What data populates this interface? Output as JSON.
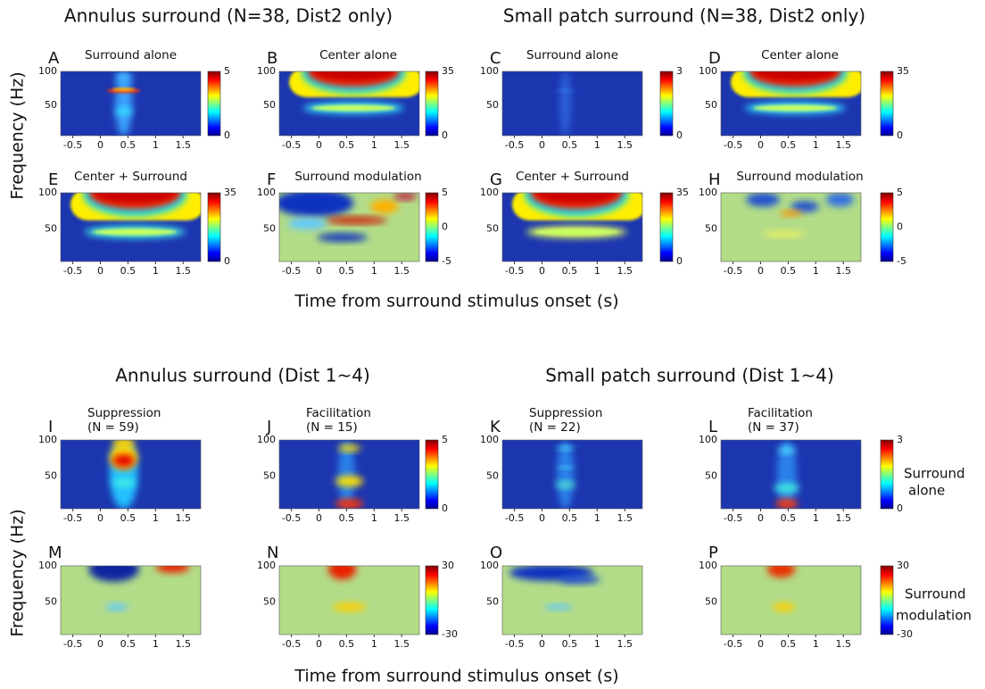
{
  "sections": [
    {
      "title": "Annulus surround (N=38, Dist2 only)"
    },
    {
      "title": "Small patch surround (N=38, Dist2 only)"
    },
    {
      "title": "Annulus surround (Dist 1~4)"
    },
    {
      "title": "Small patch surround (Dist 1~4)"
    }
  ],
  "y_axis_label": "Frequency (Hz)",
  "x_axis_label": "Time from surround stimulus onset (s)",
  "xticks": [
    "-0.5",
    "0",
    "0.5",
    "1",
    "1.5"
  ],
  "yticks": [
    "100",
    "50"
  ],
  "colorbar_labels": [
    [
      "Surround",
      "alone"
    ],
    [
      "Surround",
      "modulation"
    ]
  ],
  "panels": [
    {
      "letter": "A",
      "title": [
        "Surround alone"
      ],
      "colorbar": [
        "5",
        "0"
      ]
    },
    {
      "letter": "B",
      "title": [
        "Center alone"
      ],
      "colorbar": [
        "35",
        "0"
      ]
    },
    {
      "letter": "C",
      "title": [
        "Surround alone"
      ],
      "colorbar": [
        "3",
        "0"
      ]
    },
    {
      "letter": "D",
      "title": [
        "Center alone"
      ],
      "colorbar": [
        "35",
        "0"
      ]
    },
    {
      "letter": "E",
      "title": [
        "Center + Surround"
      ],
      "colorbar": [
        "35",
        "0"
      ]
    },
    {
      "letter": "F",
      "title": [
        "Surround modulation"
      ],
      "colorbar": [
        "5",
        "0",
        "-5"
      ]
    },
    {
      "letter": "G",
      "title": [
        "Center + Surround"
      ],
      "colorbar": [
        "35",
        "0"
      ]
    },
    {
      "letter": "H",
      "title": [
        "Surround modulation"
      ],
      "colorbar": [
        "5",
        "0",
        "-5"
      ]
    },
    {
      "letter": "I",
      "title": [
        "Suppression",
        "(N = 59)"
      ]
    },
    {
      "letter": "J",
      "title": [
        "Facilitation",
        "(N = 15)"
      ],
      "colorbar": [
        "5",
        "0"
      ]
    },
    {
      "letter": "K",
      "title": [
        "Suppression",
        "(N = 22)"
      ]
    },
    {
      "letter": "L",
      "title": [
        "Facilitation",
        "(N = 37)"
      ],
      "colorbar": [
        "3",
        "0"
      ]
    },
    {
      "letter": "M",
      "title": []
    },
    {
      "letter": "N",
      "title": [],
      "colorbar": [
        "30",
        "-30"
      ]
    },
    {
      "letter": "O",
      "title": []
    },
    {
      "letter": "P",
      "title": [],
      "colorbar": [
        "30",
        "-30"
      ]
    }
  ]
}
